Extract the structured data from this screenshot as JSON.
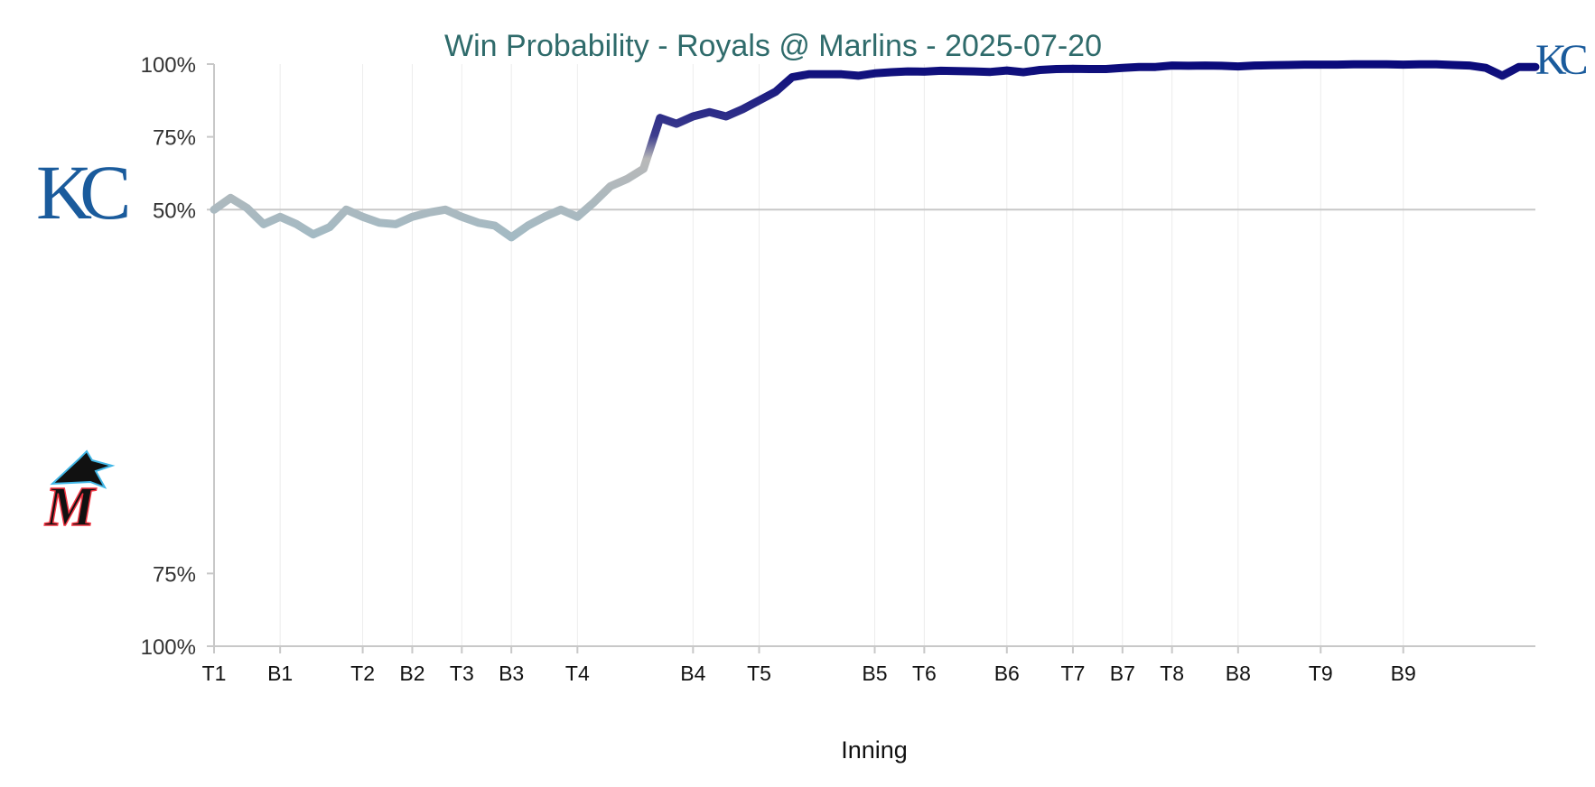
{
  "colors": {
    "title": "#2f6b6b",
    "royals": "#0a0a7a",
    "neutral": "#b8b8b8",
    "marlins_tint": "#9fbac6",
    "royals_logo": "#1a5b9c",
    "marlins_logo_black": "#111111",
    "marlins_logo_blue": "#41b6e6",
    "marlins_logo_red": "#ef3340",
    "grid": "#ececec",
    "axis": "#c8c8c8"
  },
  "logos": {
    "home": {
      "team": "Royals",
      "text": "KC",
      "icon": "royals-logo"
    },
    "away": {
      "team": "Marlins",
      "text": "M",
      "icon": "marlins-logo"
    }
  },
  "chart_data": {
    "type": "line",
    "title": "Win Probability - Royals @ Marlins - 2025-07-20",
    "xlabel": "Inning",
    "ylabel": "",
    "y_ticks": [
      {
        "value": 100,
        "label": "100%"
      },
      {
        "value": 75,
        "label": "75%"
      },
      {
        "value": 50,
        "label": "50%"
      },
      {
        "value": -75,
        "label": "75%"
      },
      {
        "value": -100,
        "label": "100%"
      }
    ],
    "ylim": [
      -100,
      100
    ],
    "xlim": [
      0,
      80
    ],
    "x_ticks": [
      {
        "label": "T1",
        "x": 0
      },
      {
        "label": "B1",
        "x": 4
      },
      {
        "label": "T2",
        "x": 9
      },
      {
        "label": "B2",
        "x": 12
      },
      {
        "label": "T3",
        "x": 15
      },
      {
        "label": "B3",
        "x": 18
      },
      {
        "label": "T4",
        "x": 22
      },
      {
        "label": "B4",
        "x": 29
      },
      {
        "label": "T5",
        "x": 33
      },
      {
        "label": "B5",
        "x": 40
      },
      {
        "label": "T6",
        "x": 43
      },
      {
        "label": "B6",
        "x": 48
      },
      {
        "label": "T7",
        "x": 52
      },
      {
        "label": "B7",
        "x": 55
      },
      {
        "label": "T8",
        "x": 58
      },
      {
        "label": "B8",
        "x": 62
      },
      {
        "label": "T9",
        "x": 67
      },
      {
        "label": "B9",
        "x": 72
      }
    ],
    "series": [
      {
        "name": "Royals win probability",
        "x": [
          0,
          1,
          2,
          3,
          4,
          5,
          6,
          7,
          8,
          9,
          10,
          11,
          12,
          13,
          14,
          15,
          16,
          17,
          18,
          19,
          20,
          21,
          22,
          23,
          24,
          25,
          26,
          27,
          28,
          29,
          30,
          31,
          32,
          33,
          34,
          35,
          36,
          37,
          38,
          39,
          40,
          41,
          42,
          43,
          44,
          45,
          46,
          47,
          48,
          49,
          50,
          51,
          52,
          53,
          54,
          55,
          56,
          57,
          58,
          59,
          60,
          61,
          62,
          63,
          64,
          65,
          66,
          67,
          68,
          69,
          70,
          71,
          72,
          73,
          74,
          75,
          76,
          77,
          78,
          79,
          80
        ],
        "values": [
          50,
          54,
          50.5,
          45,
          47.5,
          45,
          41.5,
          44,
          50,
          47.5,
          45.5,
          45,
          47.5,
          49,
          50,
          47.5,
          45.5,
          44.5,
          40.5,
          44.5,
          47.5,
          50,
          47.5,
          52.5,
          58,
          60.5,
          64,
          81.5,
          79.5,
          82,
          83.5,
          82,
          84.5,
          87.5,
          90.5,
          95.5,
          96.5,
          96.5,
          96.5,
          96,
          96.8,
          97.2,
          97.5,
          97.4,
          97.7,
          97.6,
          97.5,
          97.3,
          97.8,
          97.2,
          98,
          98.3,
          98.4,
          98.3,
          98.3,
          98.7,
          99,
          99,
          99.5,
          99.4,
          99.5,
          99.4,
          99.2,
          99.5,
          99.6,
          99.7,
          99.8,
          99.8,
          99.8,
          99.9,
          99.9,
          99.9,
          99.8,
          99.9,
          99.9,
          99.7,
          99.5,
          98.7,
          96,
          99,
          99
        ]
      }
    ]
  }
}
